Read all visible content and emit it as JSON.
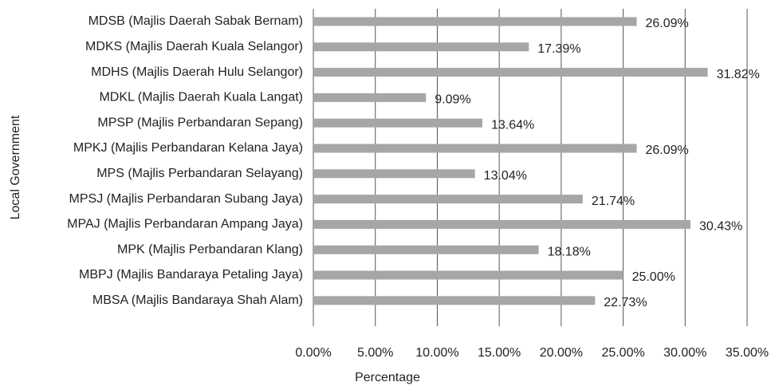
{
  "chart_data": {
    "type": "bar",
    "orientation": "horizontal",
    "x_label": "Percentage",
    "y_label": "Local Government",
    "categories": [
      "MDSB (Majlis Daerah Sabak Bernam)",
      "MDKS (Majlis Daerah Kuala Selangor)",
      "MDHS (Majlis Daerah Hulu Selangor)",
      "MDKL (Majlis Daerah Kuala Langat)",
      "MPSP (Majlis Perbandaran Sepang)",
      "MPKJ (Majlis Perbandaran Kelana Jaya)",
      "MPS (Majlis Perbandaran Selayang)",
      "MPSJ (Majlis Perbandaran Subang Jaya)",
      "MPAJ (Majlis Perbandaran Ampang Jaya)",
      "MPK (Majlis Perbandaran Klang)",
      "MBPJ (Majlis Bandaraya Petaling Jaya)",
      "MBSA (Majlis Bandaraya Shah Alam)"
    ],
    "values": [
      26.09,
      17.39,
      31.82,
      9.09,
      13.64,
      26.09,
      13.04,
      21.74,
      30.43,
      18.18,
      25.0,
      22.73
    ],
    "value_labels": [
      "26.09%",
      "17.39%",
      "31.82%",
      "9.09%",
      "13.64%",
      "26.09%",
      "13.04%",
      "21.74%",
      "30.43%",
      "18.18%",
      "25.00%",
      "22.73%"
    ],
    "color": "#a6a6a6",
    "xlim": [
      0,
      35
    ],
    "xticks": [
      {
        "value": 0,
        "label": "0.00%"
      },
      {
        "value": 5,
        "label": "5.00%"
      },
      {
        "value": 10,
        "label": "10.00%"
      },
      {
        "value": 15,
        "label": "15.00%"
      },
      {
        "value": 20,
        "label": "20.00%"
      },
      {
        "value": 25,
        "label": "25.00%"
      },
      {
        "value": 30,
        "label": "30.00%"
      },
      {
        "value": 35,
        "label": "35.00%"
      }
    ],
    "grid": true
  }
}
